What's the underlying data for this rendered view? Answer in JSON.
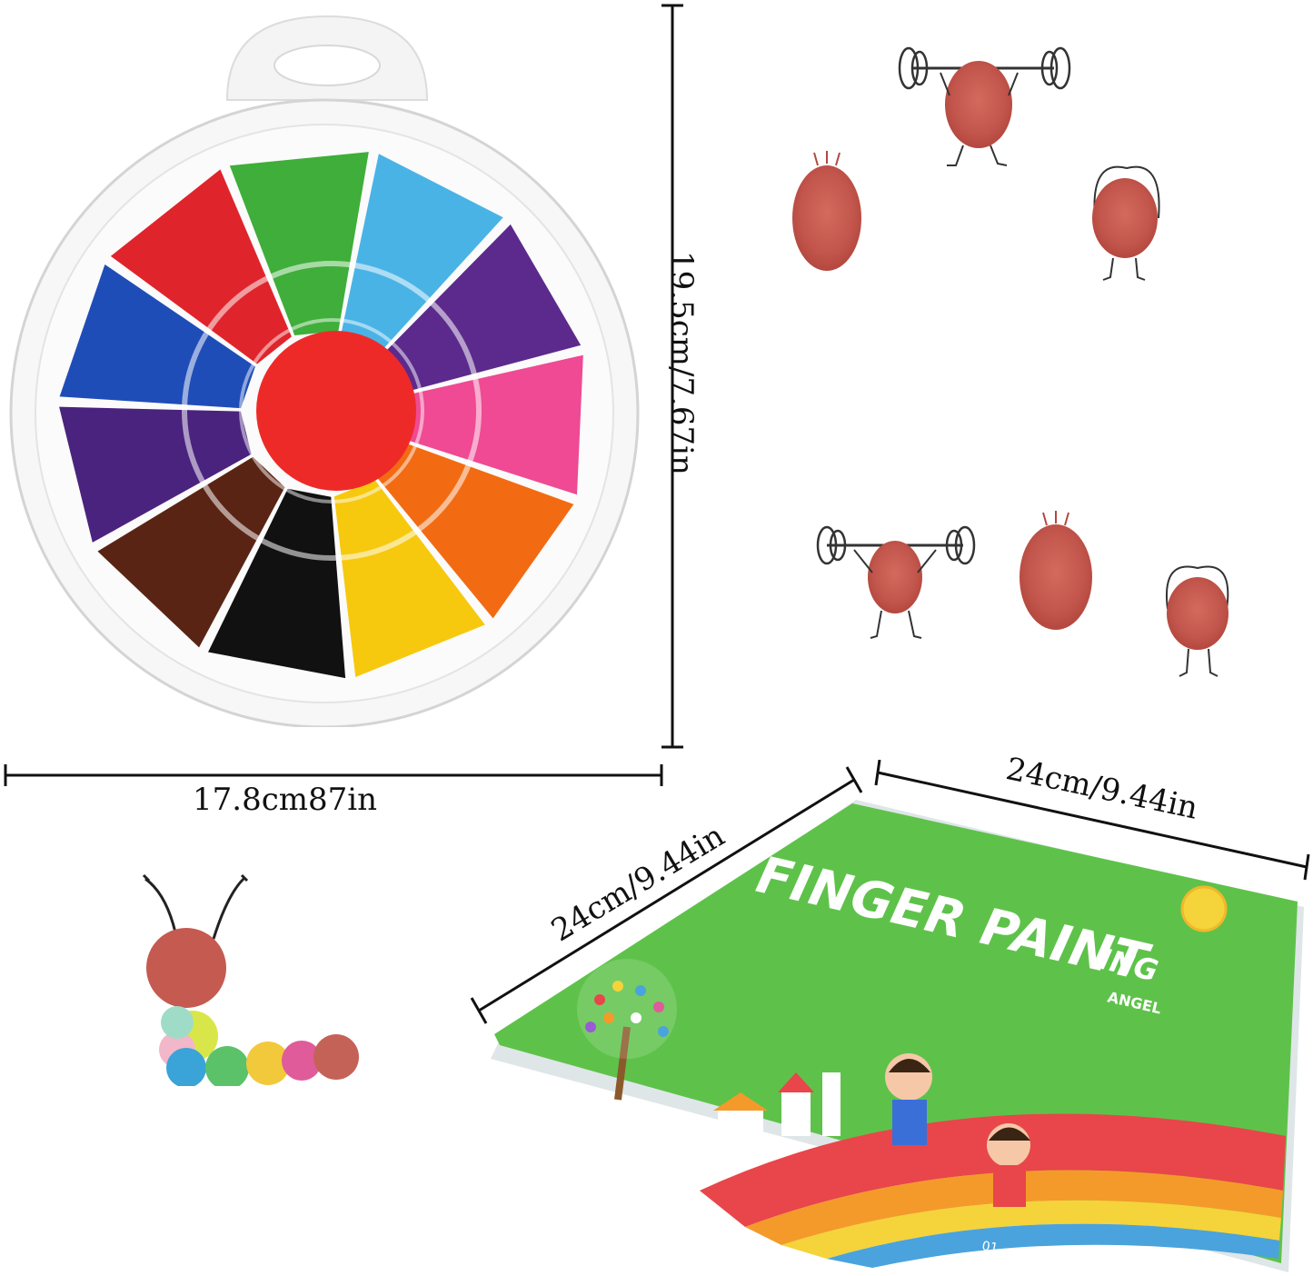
{
  "dimensions": {
    "pad_height": "19.5cm/7.67in",
    "pad_width": "17.8cm87in",
    "book_side_left": "24cm/9.44in",
    "book_side_top": "24cm/9.44in"
  },
  "book": {
    "title": "FINGER PAINTING",
    "title_main": "FINGER PAINT",
    "title_tail": "ING",
    "subtitle": "ANGEL",
    "page_number": "01",
    "cover_color": "#5ec24a"
  },
  "ink_pad": {
    "segment_colors": [
      "#3fae3a",
      "#4ab3e6",
      "#5b2a8c",
      "#ef4a93",
      "#f26b12",
      "#f6c90e",
      "#111111",
      "#5a2414",
      "#4a237e",
      "#1f4db8",
      "#e0242c"
    ],
    "center_color": "#ee2a28",
    "icon": "ink-pad-icon"
  },
  "illustrations": {
    "figures": [
      "weightlifter-icon",
      "thumbprint-icon",
      "jump-rope-icon",
      "caterpillar-icon"
    ]
  }
}
